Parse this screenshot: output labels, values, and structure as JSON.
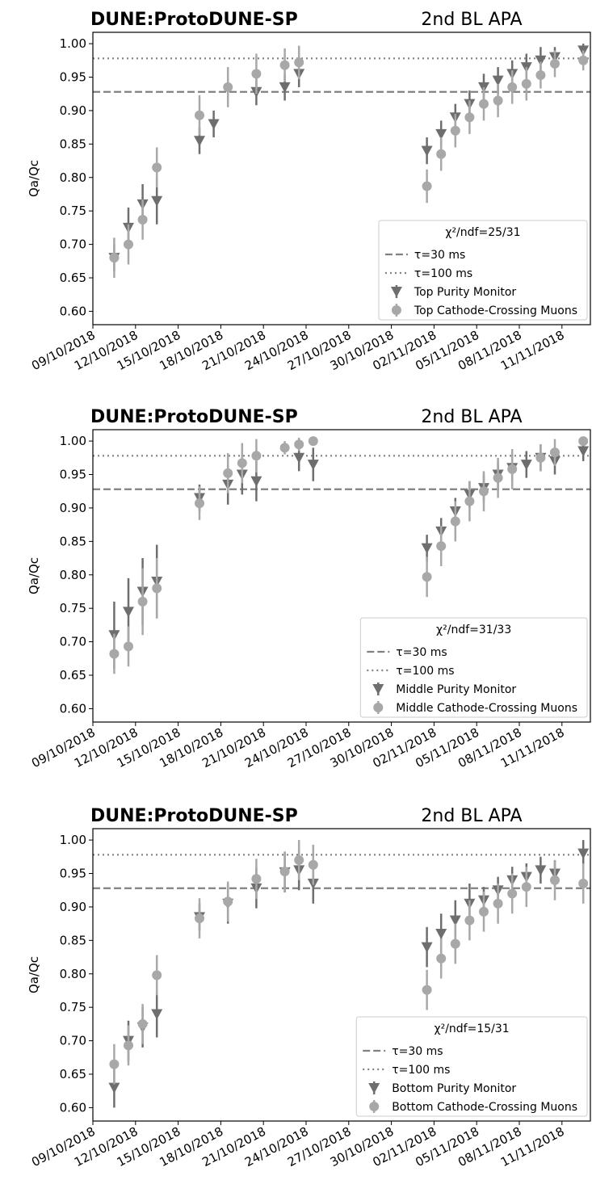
{
  "chart_data": [
    {
      "type": "scatter",
      "title": "DUNE:ProtoDUNE-SP",
      "subtitle": "2nd BL APA",
      "ylabel": "Qa/Qc",
      "xlim": [
        "2018-10-09",
        "2018-11-13"
      ],
      "xticks": [
        {
          "value": "2018-10-09",
          "label": "09/10/2018"
        },
        {
          "value": "2018-10-12",
          "label": "12/10/2018"
        },
        {
          "value": "2018-10-15",
          "label": "15/10/2018"
        },
        {
          "value": "2018-10-18",
          "label": "18/10/2018"
        },
        {
          "value": "2018-10-21",
          "label": "21/10/2018"
        },
        {
          "value": "2018-10-24",
          "label": "24/10/2018"
        },
        {
          "value": "2018-10-27",
          "label": "27/10/2018"
        },
        {
          "value": "2018-10-30",
          "label": "30/10/2018"
        },
        {
          "value": "2018-11-02",
          "label": "02/11/2018"
        },
        {
          "value": "2018-11-05",
          "label": "05/11/2018"
        },
        {
          "value": "2018-11-08",
          "label": "08/11/2018"
        },
        {
          "value": "2018-11-11",
          "label": "11/11/2018"
        }
      ],
      "ylim": [
        0.58,
        1.017
      ],
      "yticks": [
        {
          "value": 0.6,
          "label": "0.60"
        },
        {
          "value": 0.65,
          "label": "0.65"
        },
        {
          "value": 0.7,
          "label": "0.70"
        },
        {
          "value": 0.75,
          "label": "0.75"
        },
        {
          "value": 0.8,
          "label": "0.80"
        },
        {
          "value": 0.85,
          "label": "0.85"
        },
        {
          "value": 0.9,
          "label": "0.90"
        },
        {
          "value": 0.95,
          "label": "0.95"
        },
        {
          "value": 1.0,
          "label": "1.00"
        }
      ],
      "hlines": [
        {
          "name": "τ=30 ms",
          "value": 0.928,
          "color": "#808080",
          "style": "dashed"
        },
        {
          "name": "τ=100 ms",
          "value": 0.978,
          "color": "#808080",
          "style": "dotted"
        }
      ],
      "legend_title": "χ²/ndf=25/31",
      "legend_loc": "lower right",
      "series": [
        {
          "name": "Top Purity Monitor",
          "color": "#6e6e6e",
          "marker": "triangle",
          "x": [
            "2018-10-10",
            "2018-10-11",
            "2018-10-12",
            "2018-10-13",
            "2018-10-16",
            "2018-10-17",
            "2018-10-20",
            "2018-10-22",
            "2018-10-23",
            "2018-11-01",
            "2018-11-02",
            "2018-11-03",
            "2018-11-04",
            "2018-11-05",
            "2018-11-06",
            "2018-11-07",
            "2018-11-08",
            "2018-11-09",
            "2018-11-10",
            "2018-11-12"
          ],
          "values": [
            0.68,
            0.725,
            0.76,
            0.765,
            0.855,
            0.88,
            0.928,
            0.935,
            0.955,
            0.84,
            0.865,
            0.89,
            0.91,
            0.935,
            0.945,
            0.955,
            0.965,
            0.975,
            0.98,
            0.99
          ],
          "errors": [
            0.02,
            0.03,
            0.03,
            0.035,
            0.02,
            0.02,
            0.02,
            0.02,
            0.02,
            0.02,
            0.02,
            0.02,
            0.02,
            0.02,
            0.02,
            0.02,
            0.02,
            0.02,
            0.015,
            0.01
          ]
        },
        {
          "name": "Top Cathode-Crossing Muons",
          "color": "#a8a8a8",
          "marker": "circle",
          "x": [
            "2018-10-10",
            "2018-10-11",
            "2018-10-12",
            "2018-10-13",
            "2018-10-16",
            "2018-10-18",
            "2018-10-20",
            "2018-10-22",
            "2018-10-23",
            "2018-11-01",
            "2018-11-02",
            "2018-11-03",
            "2018-11-04",
            "2018-11-05",
            "2018-11-06",
            "2018-11-07",
            "2018-11-08",
            "2018-11-09",
            "2018-11-10",
            "2018-11-12"
          ],
          "values": [
            0.68,
            0.7,
            0.737,
            0.815,
            0.893,
            0.935,
            0.955,
            0.968,
            0.972,
            0.787,
            0.835,
            0.87,
            0.89,
            0.91,
            0.915,
            0.935,
            0.94,
            0.953,
            0.97,
            0.975
          ],
          "errors": [
            0.03,
            0.03,
            0.03,
            0.03,
            0.03,
            0.03,
            0.03,
            0.025,
            0.025,
            0.025,
            0.025,
            0.025,
            0.025,
            0.025,
            0.025,
            0.025,
            0.025,
            0.02,
            0.02,
            0.015
          ]
        }
      ]
    },
    {
      "type": "scatter",
      "title": "DUNE:ProtoDUNE-SP",
      "subtitle": "2nd BL APA",
      "ylabel": "Qa/Qc",
      "xlim": [
        "2018-10-09",
        "2018-11-13"
      ],
      "xticks": [
        {
          "value": "2018-10-09",
          "label": "09/10/2018"
        },
        {
          "value": "2018-10-12",
          "label": "12/10/2018"
        },
        {
          "value": "2018-10-15",
          "label": "15/10/2018"
        },
        {
          "value": "2018-10-18",
          "label": "18/10/2018"
        },
        {
          "value": "2018-10-21",
          "label": "21/10/2018"
        },
        {
          "value": "2018-10-24",
          "label": "24/10/2018"
        },
        {
          "value": "2018-10-27",
          "label": "27/10/2018"
        },
        {
          "value": "2018-10-30",
          "label": "30/10/2018"
        },
        {
          "value": "2018-11-02",
          "label": "02/11/2018"
        },
        {
          "value": "2018-11-05",
          "label": "05/11/2018"
        },
        {
          "value": "2018-11-08",
          "label": "08/11/2018"
        },
        {
          "value": "2018-11-11",
          "label": "11/11/2018"
        }
      ],
      "ylim": [
        0.58,
        1.017
      ],
      "yticks": [
        {
          "value": 0.6,
          "label": "0.60"
        },
        {
          "value": 0.65,
          "label": "0.65"
        },
        {
          "value": 0.7,
          "label": "0.70"
        },
        {
          "value": 0.75,
          "label": "0.75"
        },
        {
          "value": 0.8,
          "label": "0.80"
        },
        {
          "value": 0.85,
          "label": "0.85"
        },
        {
          "value": 0.9,
          "label": "0.90"
        },
        {
          "value": 0.95,
          "label": "0.95"
        },
        {
          "value": 1.0,
          "label": "1.00"
        }
      ],
      "hlines": [
        {
          "name": "τ=30 ms",
          "value": 0.928,
          "color": "#808080",
          "style": "dashed"
        },
        {
          "name": "τ=100 ms",
          "value": 0.978,
          "color": "#808080",
          "style": "dotted"
        }
      ],
      "legend_title": "χ²/ndf=31/33",
      "legend_loc": "lower right",
      "series": [
        {
          "name": "Middle Purity Monitor",
          "color": "#6e6e6e",
          "marker": "triangle",
          "x": [
            "2018-10-10",
            "2018-10-11",
            "2018-10-12",
            "2018-10-13",
            "2018-10-16",
            "2018-10-18",
            "2018-10-19",
            "2018-10-20",
            "2018-10-23",
            "2018-10-24",
            "2018-11-01",
            "2018-11-02",
            "2018-11-03",
            "2018-11-04",
            "2018-11-05",
            "2018-11-06",
            "2018-11-07",
            "2018-11-08",
            "2018-11-09",
            "2018-11-10",
            "2018-11-12"
          ],
          "values": [
            0.71,
            0.745,
            0.775,
            0.79,
            0.915,
            0.935,
            0.95,
            0.94,
            0.975,
            0.965,
            0.84,
            0.865,
            0.895,
            0.92,
            0.93,
            0.95,
            0.96,
            0.965,
            0.975,
            0.97,
            0.985
          ],
          "errors": [
            0.05,
            0.05,
            0.05,
            0.055,
            0.02,
            0.03,
            0.03,
            0.03,
            0.02,
            0.025,
            0.02,
            0.02,
            0.02,
            0.02,
            0.02,
            0.02,
            0.02,
            0.02,
            0.02,
            0.02,
            0.015
          ]
        },
        {
          "name": "Middle Cathode-Crossing Muons",
          "color": "#a8a8a8",
          "marker": "circle",
          "x": [
            "2018-10-10",
            "2018-10-11",
            "2018-10-12",
            "2018-10-13",
            "2018-10-16",
            "2018-10-18",
            "2018-10-19",
            "2018-10-20",
            "2018-10-22",
            "2018-10-23",
            "2018-10-24",
            "2018-11-01",
            "2018-11-02",
            "2018-11-03",
            "2018-11-04",
            "2018-11-05",
            "2018-11-06",
            "2018-11-07",
            "2018-11-09",
            "2018-11-10",
            "2018-11-12"
          ],
          "values": [
            0.682,
            0.693,
            0.76,
            0.78,
            0.907,
            0.952,
            0.967,
            0.978,
            0.99,
            0.995,
            1.0,
            0.797,
            0.843,
            0.88,
            0.91,
            0.925,
            0.945,
            0.958,
            0.975,
            0.983,
            1.0
          ],
          "errors": [
            0.03,
            0.03,
            0.05,
            0.045,
            0.025,
            0.03,
            0.03,
            0.025,
            0.01,
            0.01,
            0.005,
            0.03,
            0.03,
            0.03,
            0.03,
            0.03,
            0.03,
            0.03,
            0.02,
            0.02,
            0.005
          ]
        }
      ]
    },
    {
      "type": "scatter",
      "title": "DUNE:ProtoDUNE-SP",
      "subtitle": "2nd BL APA",
      "ylabel": "Qa/Qc",
      "xlim": [
        "2018-10-09",
        "2018-11-13"
      ],
      "xticks": [
        {
          "value": "2018-10-09",
          "label": "09/10/2018"
        },
        {
          "value": "2018-10-12",
          "label": "12/10/2018"
        },
        {
          "value": "2018-10-15",
          "label": "15/10/2018"
        },
        {
          "value": "2018-10-18",
          "label": "18/10/2018"
        },
        {
          "value": "2018-10-21",
          "label": "21/10/2018"
        },
        {
          "value": "2018-10-24",
          "label": "24/10/2018"
        },
        {
          "value": "2018-10-27",
          "label": "27/10/2018"
        },
        {
          "value": "2018-10-30",
          "label": "30/10/2018"
        },
        {
          "value": "2018-11-02",
          "label": "02/11/2018"
        },
        {
          "value": "2018-11-05",
          "label": "05/11/2018"
        },
        {
          "value": "2018-11-08",
          "label": "08/11/2018"
        },
        {
          "value": "2018-11-11",
          "label": "11/11/2018"
        }
      ],
      "ylim": [
        0.58,
        1.017
      ],
      "yticks": [
        {
          "value": 0.6,
          "label": "0.60"
        },
        {
          "value": 0.65,
          "label": "0.65"
        },
        {
          "value": 0.7,
          "label": "0.70"
        },
        {
          "value": 0.75,
          "label": "0.75"
        },
        {
          "value": 0.8,
          "label": "0.80"
        },
        {
          "value": 0.85,
          "label": "0.85"
        },
        {
          "value": 0.9,
          "label": "0.90"
        },
        {
          "value": 0.95,
          "label": "0.95"
        },
        {
          "value": 1.0,
          "label": "1.00"
        }
      ],
      "hlines": [
        {
          "name": "τ=30 ms",
          "value": 0.928,
          "color": "#808080",
          "style": "dashed"
        },
        {
          "name": "τ=100 ms",
          "value": 0.978,
          "color": "#808080",
          "style": "dotted"
        }
      ],
      "legend_title": "χ²/ndf=15/31",
      "legend_loc": "lower right",
      "series": [
        {
          "name": "Bottom Purity Monitor",
          "color": "#6e6e6e",
          "marker": "triangle",
          "x": [
            "2018-10-10",
            "2018-10-11",
            "2018-10-12",
            "2018-10-13",
            "2018-10-16",
            "2018-10-18",
            "2018-10-20",
            "2018-10-22",
            "2018-10-23",
            "2018-10-24",
            "2018-11-01",
            "2018-11-02",
            "2018-11-03",
            "2018-11-04",
            "2018-11-05",
            "2018-11-06",
            "2018-11-07",
            "2018-11-08",
            "2018-11-09",
            "2018-11-10",
            "2018-11-12"
          ],
          "values": [
            0.63,
            0.7,
            0.72,
            0.74,
            0.885,
            0.905,
            0.928,
            0.952,
            0.955,
            0.935,
            0.84,
            0.86,
            0.88,
            0.905,
            0.91,
            0.925,
            0.94,
            0.945,
            0.955,
            0.95,
            0.98
          ],
          "errors": [
            0.03,
            0.03,
            0.03,
            0.035,
            0.02,
            0.03,
            0.03,
            0.03,
            0.03,
            0.03,
            0.03,
            0.03,
            0.03,
            0.03,
            0.02,
            0.02,
            0.02,
            0.02,
            0.02,
            0.02,
            0.02
          ]
        },
        {
          "name": "Bottom Cathode-Crossing Muons",
          "color": "#a8a8a8",
          "marker": "circle",
          "x": [
            "2018-10-10",
            "2018-10-11",
            "2018-10-12",
            "2018-10-13",
            "2018-10-16",
            "2018-10-18",
            "2018-10-20",
            "2018-10-22",
            "2018-10-23",
            "2018-10-24",
            "2018-11-01",
            "2018-11-02",
            "2018-11-03",
            "2018-11-04",
            "2018-11-05",
            "2018-11-06",
            "2018-11-07",
            "2018-11-08",
            "2018-11-10",
            "2018-11-12"
          ],
          "values": [
            0.665,
            0.693,
            0.725,
            0.798,
            0.883,
            0.908,
            0.942,
            0.953,
            0.97,
            0.963,
            0.776,
            0.823,
            0.845,
            0.88,
            0.893,
            0.905,
            0.92,
            0.93,
            0.94,
            0.935
          ],
          "errors": [
            0.03,
            0.03,
            0.03,
            0.03,
            0.03,
            0.03,
            0.03,
            0.03,
            0.03,
            0.03,
            0.03,
            0.03,
            0.03,
            0.03,
            0.03,
            0.03,
            0.03,
            0.03,
            0.03,
            0.03
          ]
        }
      ]
    }
  ]
}
